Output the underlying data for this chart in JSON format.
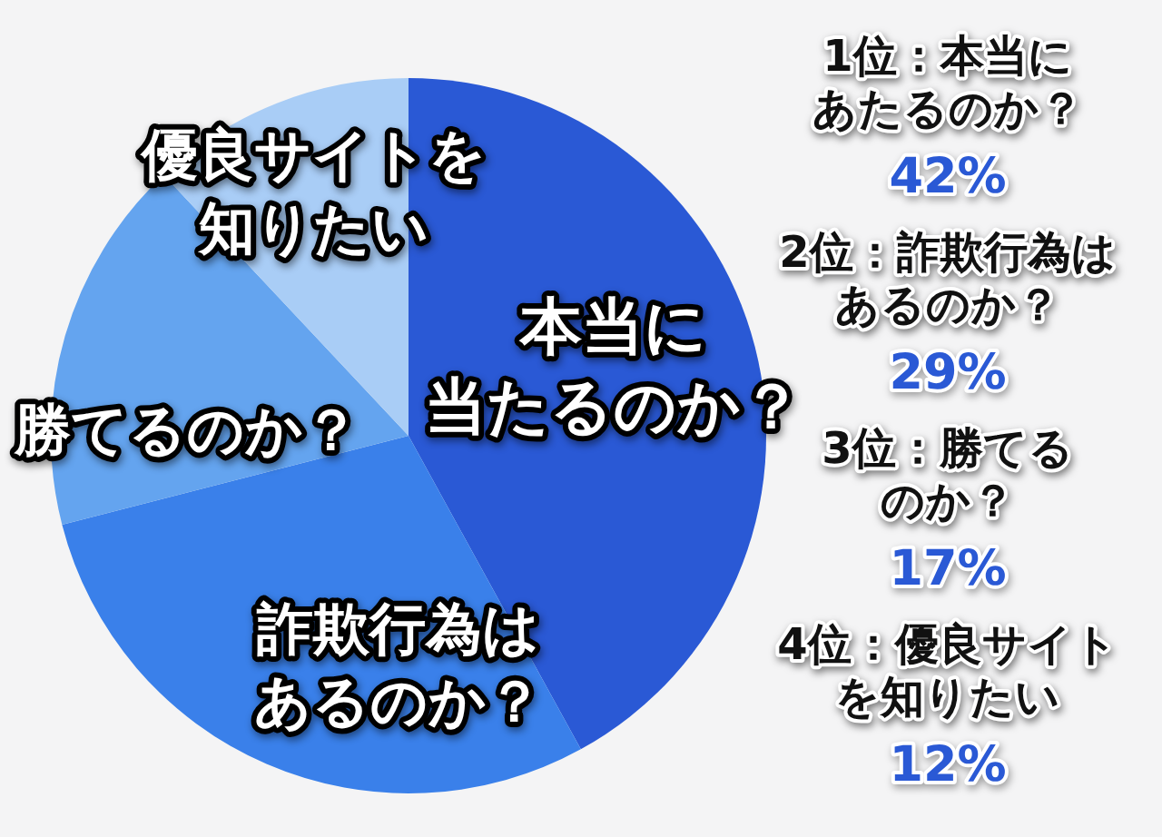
{
  "chart_data": {
    "type": "pie",
    "categories": [
      "本当に当たるのか？",
      "詐欺行為はあるのか？",
      "勝てるのか？",
      "優良サイトを知りたい"
    ],
    "values": [
      42,
      29,
      17,
      12
    ],
    "colors": [
      "#2a59d5",
      "#3a80ea",
      "#64a4ef",
      "#a9cdf6"
    ],
    "annotations": [
      "1位：本当にあたるのか？",
      "42%",
      "2位：詐欺行為はあるのか？",
      "29%",
      "3位：勝てるのか？",
      "17%",
      "4位：優良サイトを知りたい",
      "12%"
    ],
    "legend": false
  }
}
